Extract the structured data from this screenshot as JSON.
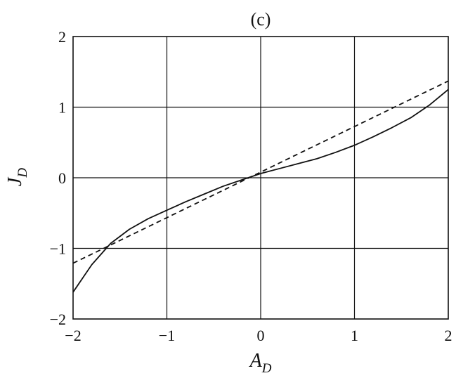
{
  "chart_data": {
    "type": "line",
    "title": "(c)",
    "xlabel": {
      "main": "A",
      "sub": "D"
    },
    "ylabel": {
      "main": "J",
      "sub": "D"
    },
    "xlim": [
      -2,
      2
    ],
    "ylim": [
      -2,
      2
    ],
    "x_ticks": [
      -2,
      -1,
      0,
      1,
      2
    ],
    "y_ticks": [
      -2,
      -1,
      0,
      1,
      2
    ],
    "x_tick_labels": [
      "−2",
      "−1",
      "0",
      "1",
      "2"
    ],
    "y_tick_labels": [
      "−2",
      "−1",
      "0",
      "1",
      "2"
    ],
    "grid": true,
    "series": [
      {
        "style": "solid",
        "color": "#111111",
        "x": [
          -2.0,
          -1.8,
          -1.6,
          -1.4,
          -1.2,
          -1.0,
          -0.8,
          -0.6,
          -0.4,
          -0.2,
          0.0,
          0.2,
          0.4,
          0.6,
          0.8,
          1.0,
          1.2,
          1.4,
          1.6,
          1.8,
          2.0
        ],
        "y": [
          -1.62,
          -1.23,
          -0.93,
          -0.73,
          -0.58,
          -0.46,
          -0.34,
          -0.23,
          -0.12,
          -0.03,
          0.06,
          0.13,
          0.2,
          0.27,
          0.36,
          0.46,
          0.58,
          0.71,
          0.85,
          1.03,
          1.25
        ]
      },
      {
        "style": "dashed",
        "color": "#111111",
        "x": [
          -2.0,
          2.0
        ],
        "y": [
          -1.21,
          1.37
        ]
      }
    ]
  }
}
